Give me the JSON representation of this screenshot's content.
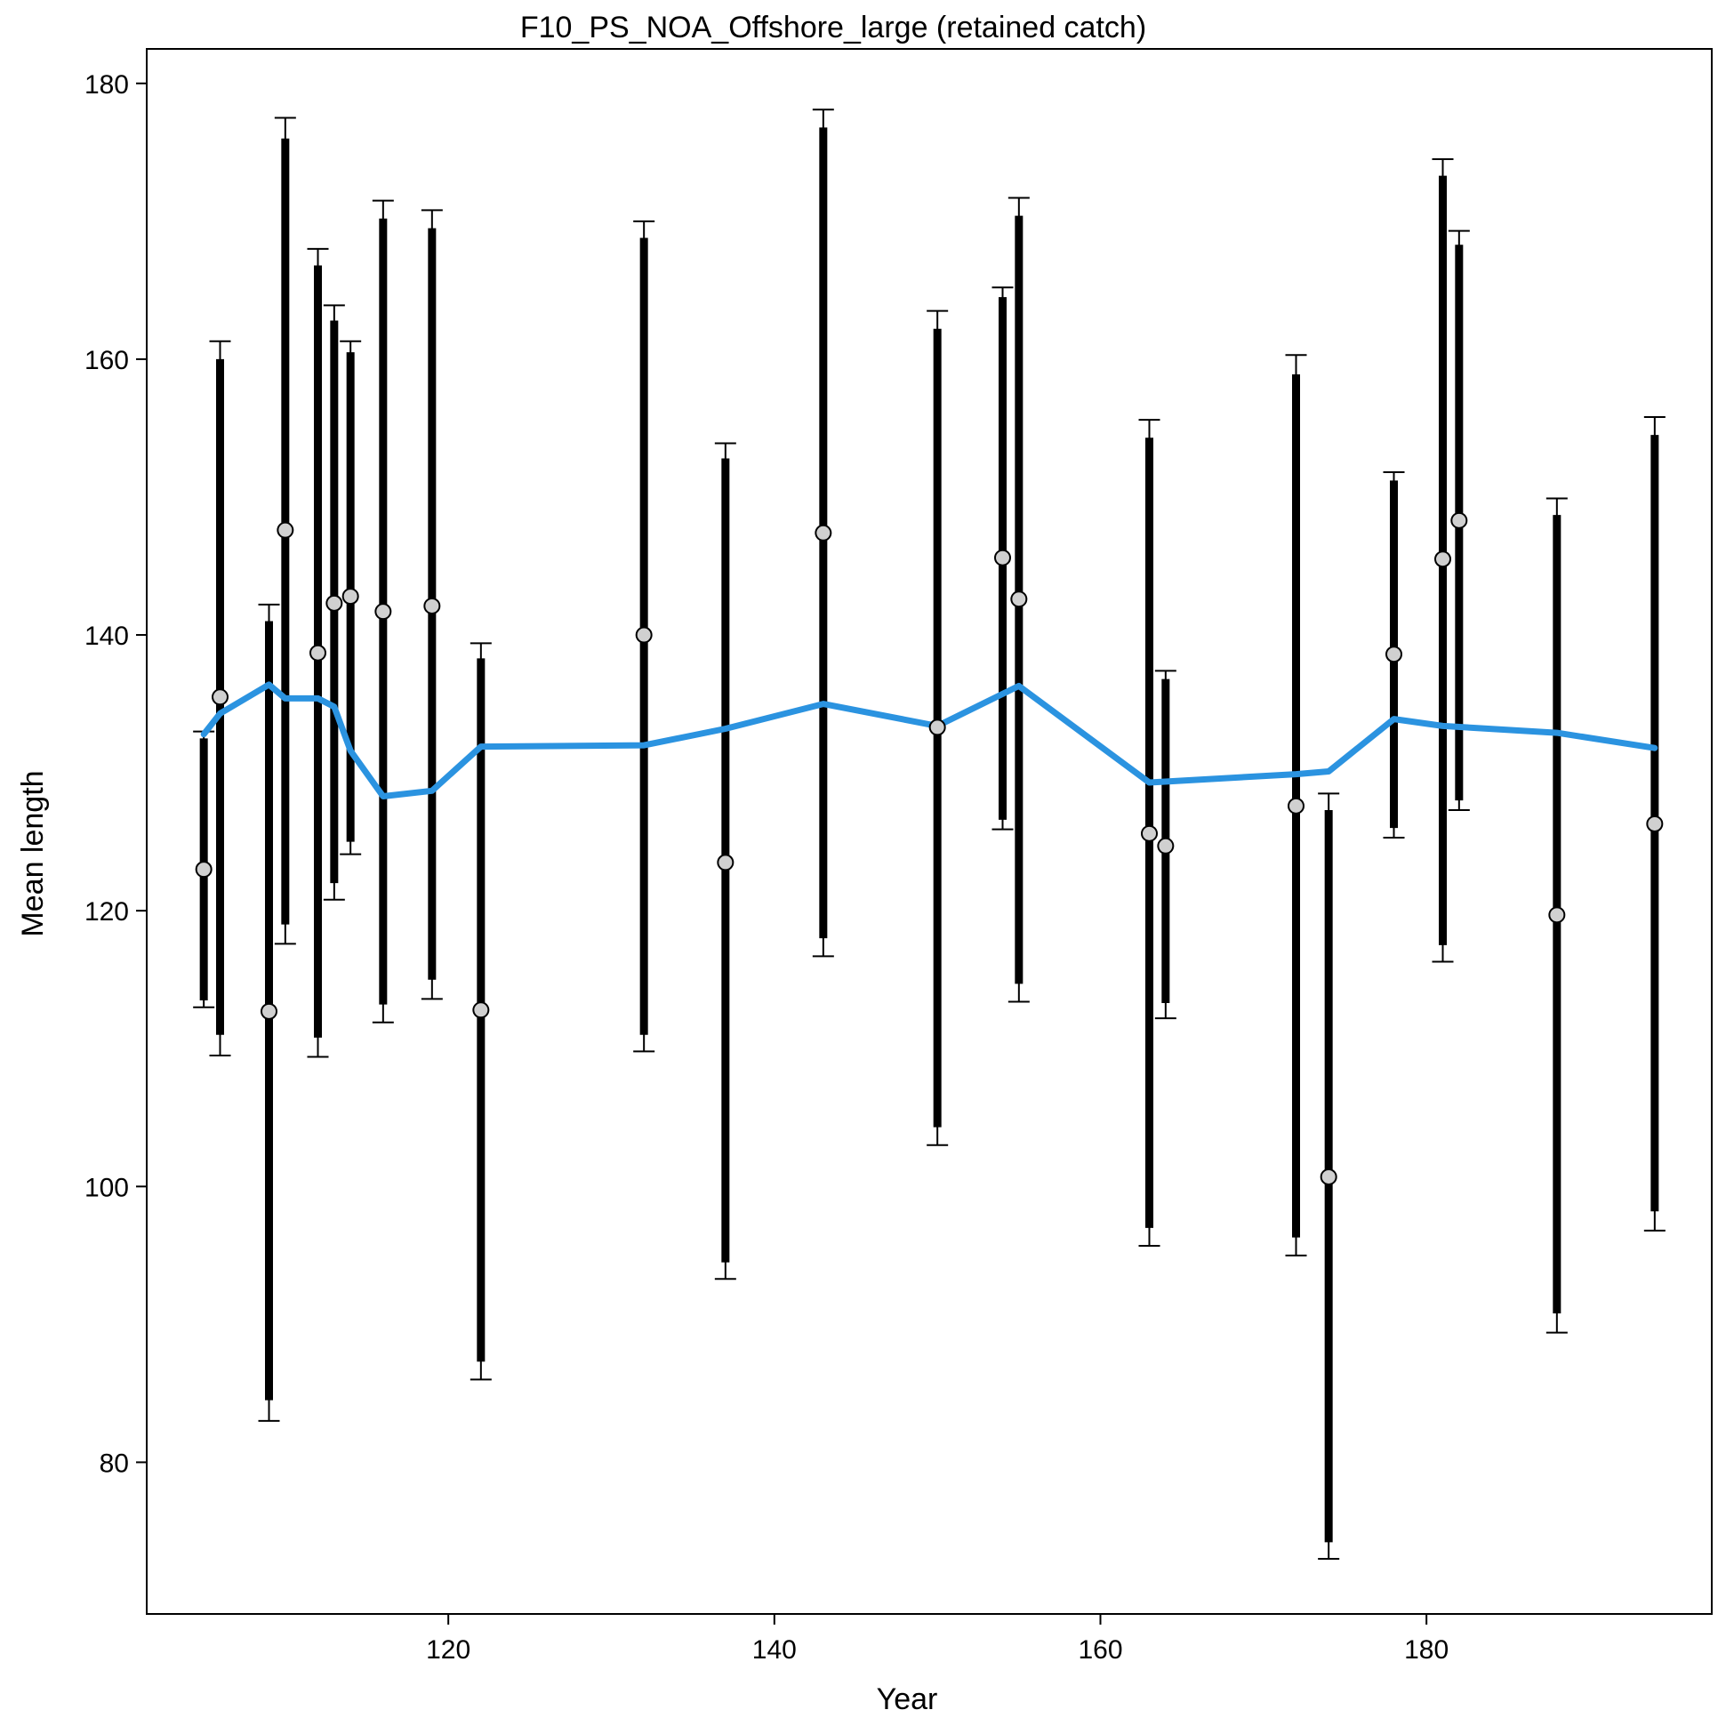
{
  "chart_data": {
    "type": "scatter",
    "title": "F10_PS_NOA_Offshore_large (retained catch)",
    "xlabel": "Year",
    "ylabel": "Mean length",
    "xlim": [
      101.5,
      197.5
    ],
    "ylim": [
      69,
      182.5
    ],
    "xticks": [
      120,
      140,
      160,
      180
    ],
    "yticks": [
      80,
      100,
      120,
      140,
      160,
      180
    ],
    "grid": false,
    "colors": {
      "fit_line": "#2b93e0",
      "bars": "#000000",
      "point_fill": "#d0d0d0",
      "point_stroke": "#000000"
    },
    "observed": [
      {
        "x": 105,
        "y": 123.0,
        "inner": [
          113.5,
          132.5
        ],
        "outer": [
          113.0,
          133.0
        ]
      },
      {
        "x": 106,
        "y": 135.5,
        "inner": [
          111.0,
          160.0
        ],
        "outer": [
          109.5,
          161.3
        ]
      },
      {
        "x": 109,
        "y": 112.7,
        "inner": [
          84.5,
          141.0
        ],
        "outer": [
          83.0,
          142.2
        ]
      },
      {
        "x": 110,
        "y": 147.6,
        "inner": [
          119.0,
          176.0
        ],
        "outer": [
          117.6,
          177.5
        ]
      },
      {
        "x": 112,
        "y": 138.7,
        "inner": [
          110.8,
          166.8
        ],
        "outer": [
          109.4,
          168.0
        ]
      },
      {
        "x": 113,
        "y": 142.3,
        "inner": [
          122.0,
          162.8
        ],
        "outer": [
          120.8,
          163.9
        ]
      },
      {
        "x": 114,
        "y": 142.8,
        "inner": [
          125.0,
          160.5
        ],
        "outer": [
          124.1,
          161.3
        ]
      },
      {
        "x": 116,
        "y": 141.7,
        "inner": [
          113.2,
          170.2
        ],
        "outer": [
          111.9,
          171.5
        ]
      },
      {
        "x": 119,
        "y": 142.1,
        "inner": [
          115.0,
          169.5
        ],
        "outer": [
          113.6,
          170.8
        ]
      },
      {
        "x": 122,
        "y": 112.8,
        "inner": [
          87.3,
          138.3
        ],
        "outer": [
          86.0,
          139.4
        ]
      },
      {
        "x": 132,
        "y": 140.0,
        "inner": [
          111.0,
          168.8
        ],
        "outer": [
          109.8,
          170.0
        ]
      },
      {
        "x": 137,
        "y": 123.5,
        "inner": [
          94.5,
          152.8
        ],
        "outer": [
          93.3,
          153.9
        ]
      },
      {
        "x": 143,
        "y": 147.4,
        "inner": [
          118.0,
          176.8
        ],
        "outer": [
          116.7,
          178.1
        ]
      },
      {
        "x": 150,
        "y": 133.3,
        "inner": [
          104.3,
          162.2
        ],
        "outer": [
          103.0,
          163.5
        ]
      },
      {
        "x": 154,
        "y": 145.6,
        "inner": [
          126.6,
          164.5
        ],
        "outer": [
          125.9,
          165.2
        ]
      },
      {
        "x": 155,
        "y": 142.6,
        "inner": [
          114.7,
          170.4
        ],
        "outer": [
          113.4,
          171.7
        ]
      },
      {
        "x": 163,
        "y": 125.6,
        "inner": [
          97.0,
          154.3
        ],
        "outer": [
          95.7,
          155.6
        ]
      },
      {
        "x": 164,
        "y": 124.7,
        "inner": [
          113.3,
          136.8
        ],
        "outer": [
          112.2,
          137.4
        ]
      },
      {
        "x": 172,
        "y": 127.6,
        "inner": [
          96.3,
          158.9
        ],
        "outer": [
          95.0,
          160.3
        ]
      },
      {
        "x": 174,
        "y": 100.7,
        "inner": [
          74.2,
          127.3
        ],
        "outer": [
          73.0,
          128.5
        ]
      },
      {
        "x": 178,
        "y": 138.6,
        "inner": [
          126.0,
          151.2
        ],
        "outer": [
          125.3,
          151.8
        ]
      },
      {
        "x": 181,
        "y": 145.5,
        "inner": [
          117.5,
          173.3
        ],
        "outer": [
          116.3,
          174.5
        ]
      },
      {
        "x": 182,
        "y": 148.3,
        "inner": [
          128.0,
          168.3
        ],
        "outer": [
          127.3,
          169.3
        ]
      },
      {
        "x": 188,
        "y": 119.7,
        "inner": [
          90.8,
          148.7
        ],
        "outer": [
          89.4,
          149.9
        ]
      },
      {
        "x": 194,
        "y": 126.3,
        "inner": [
          98.2,
          154.5
        ],
        "outer": [
          96.8,
          155.8
        ]
      }
    ],
    "expected": {
      "x": [
        105,
        106,
        109,
        110,
        112,
        113,
        114,
        116,
        119,
        122,
        132,
        137,
        143,
        150,
        155,
        163,
        172,
        174,
        178,
        181,
        188,
        194
      ],
      "y": [
        132.8,
        134.3,
        136.4,
        135.4,
        135.4,
        134.8,
        131.6,
        128.3,
        128.7,
        131.9,
        132.0,
        133.2,
        135.0,
        133.4,
        136.3,
        129.3,
        129.9,
        130.1,
        133.9,
        133.4,
        132.9,
        131.8
      ]
    }
  }
}
